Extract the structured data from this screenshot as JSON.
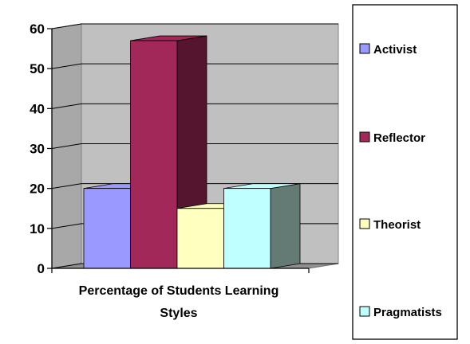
{
  "chart_data": {
    "type": "bar",
    "category_label_lines": [
      "Percentage of Students Learning",
      "Styles"
    ],
    "series": [
      {
        "name": "Activist",
        "values": [
          20
        ],
        "color": "#9999FF",
        "side_color": "#6B6BC0"
      },
      {
        "name": "Reflector",
        "values": [
          57
        ],
        "color": "#A3285A",
        "side_color": "#56152F"
      },
      {
        "name": "Theorist",
        "values": [
          15
        ],
        "color": "#FFFFC0",
        "side_color": "#BFBF90"
      },
      {
        "name": "Pragmatists",
        "values": [
          20
        ],
        "color": "#C0FFFF",
        "side_color": "#647A74"
      }
    ],
    "y_ticks": [
      "0",
      "10",
      "20",
      "30",
      "40",
      "50",
      "60"
    ],
    "ylim": [
      0,
      60
    ],
    "grid": true,
    "three_d": true,
    "wall_color": "#C0C0C0",
    "legend_position": "right"
  }
}
